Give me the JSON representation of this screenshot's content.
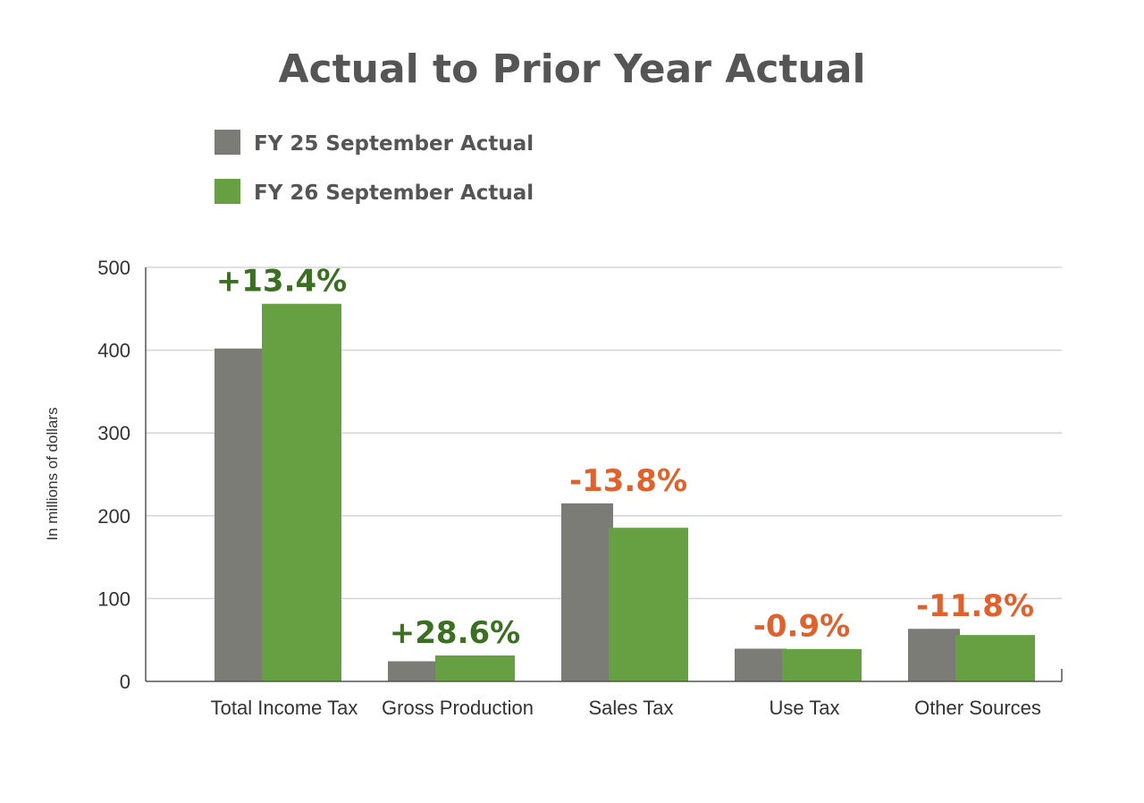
{
  "chart_data": {
    "type": "bar",
    "title": "Actual to Prior Year Actual",
    "ylabel": "In millions of dollars",
    "xlabel": "",
    "ylim": [
      0,
      500
    ],
    "yticks": [
      0,
      100,
      200,
      300,
      400,
      500
    ],
    "grid": true,
    "legend_position": "top-left",
    "categories": [
      "Total Income Tax",
      "Gross Production",
      "Sales Tax",
      "Use Tax",
      "Other Sources"
    ],
    "series": [
      {
        "name": "FY 25 September Actual",
        "color": "#7c7c77",
        "values": [
          402,
          24.3,
          215,
          39.5,
          63.5
        ]
      },
      {
        "name": "FY 26 September Actual",
        "color": "#67a043",
        "values": [
          456,
          31.3,
          185.5,
          39.1,
          56
        ]
      }
    ],
    "annotations": [
      "+13.4%",
      "+28.6%",
      "-13.8%",
      "-0.9%",
      "-11.8%"
    ],
    "annotation_colors": {
      "positive": "#3b6f22",
      "negative": "#e0612b"
    }
  }
}
